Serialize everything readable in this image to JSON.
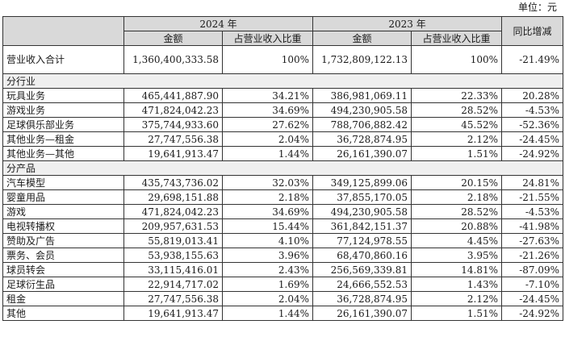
{
  "unit_label": "单位：元",
  "header": {
    "year_2024": "2024 年",
    "year_2023": "2023 年",
    "yoy": "同比增减",
    "amount": "金额",
    "share": "占营业收入比重"
  },
  "total": {
    "label": "营业收入合计",
    "amount_2024": "1,360,400,333.58",
    "share_2024": "100%",
    "amount_2023": "1,732,809,122.13",
    "share_2023": "100%",
    "yoy": "-21.49%"
  },
  "section_industry": "分行业",
  "industry_rows": [
    {
      "label": "玩具业务",
      "a24": "465,441,887.90",
      "s24": "34.21%",
      "a23": "386,981,069.11",
      "s23": "22.33%",
      "yoy": "20.28%"
    },
    {
      "label": "游戏业务",
      "a24": "471,824,042.23",
      "s24": "34.69%",
      "a23": "494,230,905.58",
      "s23": "28.52%",
      "yoy": "-4.53%"
    },
    {
      "label": "足球俱乐部业务",
      "a24": "375,744,933.60",
      "s24": "27.62%",
      "a23": "788,706,882.42",
      "s23": "45.52%",
      "yoy": "-52.36%"
    },
    {
      "label": "其他业务—租金",
      "a24": "27,747,556.38",
      "s24": "2.04%",
      "a23": "36,728,874.95",
      "s23": "2.12%",
      "yoy": "-24.45%"
    },
    {
      "label": "其他业务—其他",
      "a24": "19,641,913.47",
      "s24": "1.44%",
      "a23": "26,161,390.07",
      "s23": "1.51%",
      "yoy": "-24.92%"
    }
  ],
  "section_product": "分产品",
  "product_rows": [
    {
      "label": "汽车模型",
      "a24": "435,743,736.02",
      "s24": "32.03%",
      "a23": "349,125,899.06",
      "s23": "20.15%",
      "yoy": "24.81%"
    },
    {
      "label": "婴童用品",
      "a24": "29,698,151.88",
      "s24": "2.18%",
      "a23": "37,855,170.05",
      "s23": "2.18%",
      "yoy": "-21.55%"
    },
    {
      "label": "游戏",
      "a24": "471,824,042.23",
      "s24": "34.69%",
      "a23": "494,230,905.58",
      "s23": "28.52%",
      "yoy": "-4.53%"
    },
    {
      "label": "电视转播权",
      "a24": "209,957,631.53",
      "s24": "15.44%",
      "a23": "361,842,151.37",
      "s23": "20.88%",
      "yoy": "-41.98%"
    },
    {
      "label": "赞助及广告",
      "a24": "55,819,013.41",
      "s24": "4.10%",
      "a23": "77,124,978.55",
      "s23": "4.45%",
      "yoy": "-27.63%"
    },
    {
      "label": "票务、会员",
      "a24": "53,938,155.63",
      "s24": "3.96%",
      "a23": "68,470,860.16",
      "s23": "3.95%",
      "yoy": "-21.26%"
    },
    {
      "label": "球员转会",
      "a24": "33,115,416.01",
      "s24": "2.43%",
      "a23": "256,569,339.81",
      "s23": "14.81%",
      "yoy": "-87.09%"
    },
    {
      "label": "足球衍生品",
      "a24": "22,914,717.02",
      "s24": "1.69%",
      "a23": "24,666,552.53",
      "s23": "1.43%",
      "yoy": "-7.10%"
    },
    {
      "label": "租金",
      "a24": "27,747,556.38",
      "s24": "2.04%",
      "a23": "36,728,874.95",
      "s23": "2.12%",
      "yoy": "-24.45%"
    },
    {
      "label": "其他",
      "a24": "19,641,913.47",
      "s24": "1.44%",
      "a23": "26,161,390.07",
      "s23": "1.51%",
      "yoy": "-24.92%"
    }
  ]
}
